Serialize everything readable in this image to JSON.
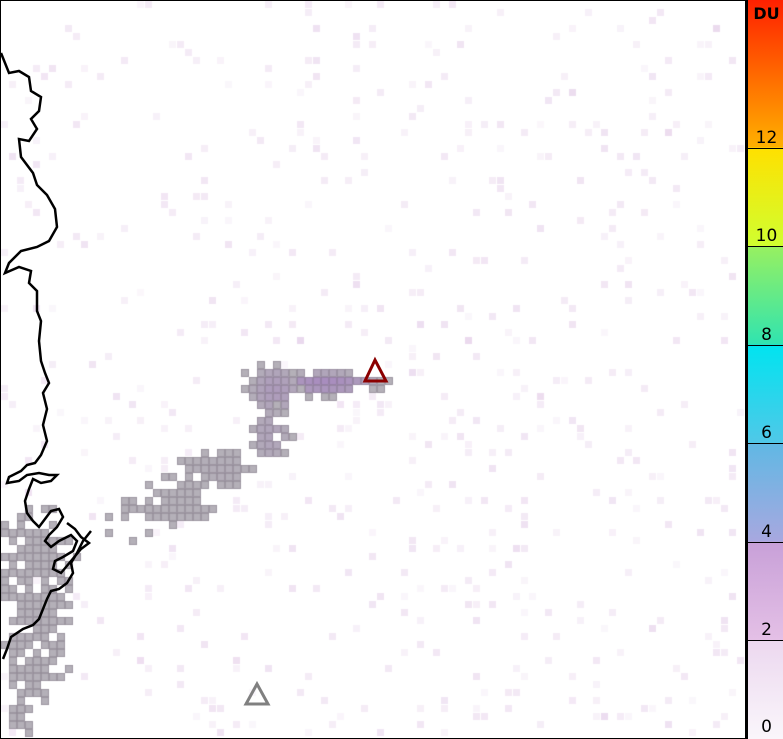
{
  "map": {
    "markers": [
      {
        "icon": "volcano-triangle-icon",
        "color": "#8b0000"
      },
      {
        "icon": "volcano-triangle-icon",
        "color": "#808080"
      }
    ],
    "coastline_color": "#000000",
    "plume_color": "#b090b8",
    "flagged_pixel_color": "#b4b0b8"
  },
  "colorbar": {
    "unit": "DU",
    "min": 0,
    "max": 15,
    "ticks": [
      {
        "value": 0,
        "label": "0"
      },
      {
        "value": 2,
        "label": "2"
      },
      {
        "value": 4,
        "label": "4"
      },
      {
        "value": 6,
        "label": "6"
      },
      {
        "value": 8,
        "label": "8"
      },
      {
        "value": 10,
        "label": "10"
      },
      {
        "value": 12,
        "label": "12"
      }
    ],
    "stops": [
      {
        "value": 0,
        "color": "#faf6fb"
      },
      {
        "value": 2,
        "color": "#ecd8ef"
      },
      {
        "value": 2.01,
        "color": "#e4c0e6"
      },
      {
        "value": 4,
        "color": "#c8a0d8"
      },
      {
        "value": 4.01,
        "color": "#a8a8e0"
      },
      {
        "value": 6,
        "color": "#60b8e4"
      },
      {
        "value": 6.01,
        "color": "#50c8e8"
      },
      {
        "value": 8,
        "color": "#00e4f0"
      },
      {
        "value": 8.01,
        "color": "#30e4b0"
      },
      {
        "value": 10,
        "color": "#98f060"
      },
      {
        "value": 10.01,
        "color": "#d0ff30"
      },
      {
        "value": 12,
        "color": "#ffe000"
      },
      {
        "value": 12.01,
        "color": "#ffb000"
      },
      {
        "value": 15,
        "color": "#ff2000"
      }
    ]
  }
}
